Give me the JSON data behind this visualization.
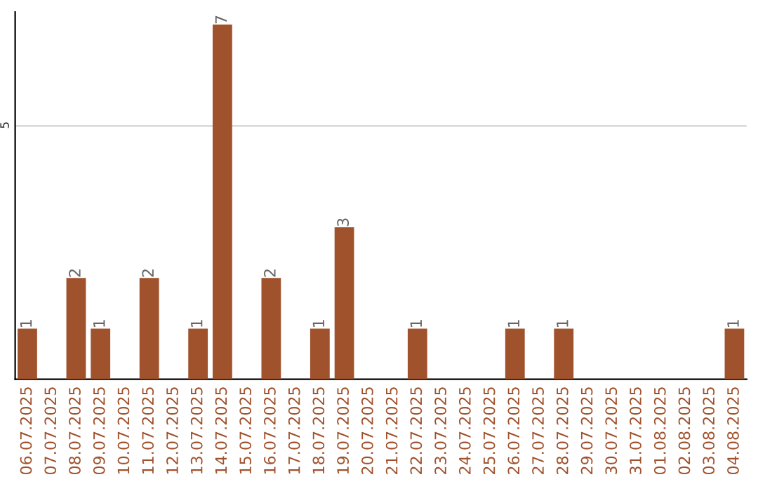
{
  "chart_data": {
    "type": "bar",
    "categories": [
      "06.07.2025",
      "07.07.2025",
      "08.07.2025",
      "09.07.2025",
      "10.07.2025",
      "11.07.2025",
      "12.07.2025",
      "13.07.2025",
      "14.07.2025",
      "15.07.2025",
      "16.07.2025",
      "17.07.2025",
      "18.07.2025",
      "19.07.2025",
      "20.07.2025",
      "21.07.2025",
      "22.07.2025",
      "23.07.2025",
      "24.07.2025",
      "25.07.2025",
      "26.07.2025",
      "27.07.2025",
      "28.07.2025",
      "29.07.2025",
      "30.07.2025",
      "31.07.2025",
      "01.08.2025",
      "02.08.2025",
      "03.08.2025",
      "04.08.2025"
    ],
    "values": [
      1,
      0,
      2,
      1,
      0,
      2,
      0,
      1,
      7,
      0,
      2,
      0,
      1,
      3,
      0,
      0,
      1,
      0,
      0,
      0,
      1,
      0,
      1,
      0,
      0,
      0,
      0,
      0,
      0,
      1
    ],
    "value_labels": [
      "1",
      null,
      "2",
      "1",
      null,
      "2",
      null,
      "1",
      "7",
      null,
      "2",
      null,
      "1",
      "3",
      null,
      null,
      "1",
      null,
      null,
      null,
      "1",
      null,
      "1",
      null,
      null,
      null,
      null,
      null,
      null,
      "1"
    ],
    "color": "#a0522d",
    "ylim": [
      0,
      7.25
    ],
    "yticks": [
      5
    ],
    "grid": "y"
  }
}
